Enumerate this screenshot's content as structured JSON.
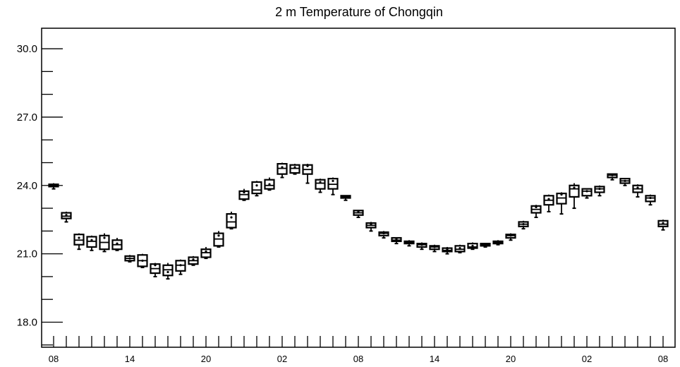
{
  "chart_data": {
    "type": "boxplot",
    "title": "2 m Temperature of Chongqin",
    "xlabel": "",
    "ylabel": "",
    "ylim": [
      16.9,
      30.9
    ],
    "yticks": [
      18.0,
      21.0,
      24.0,
      27.0,
      30.0
    ],
    "ytick_labels": [
      "18.0",
      "21.0",
      "24.0",
      "27.0",
      "30.0"
    ],
    "x_hours": [
      0,
      144
    ],
    "xticks": [
      0,
      18,
      36,
      54,
      72,
      90,
      108,
      126,
      144
    ],
    "xtick_labels": [
      "08",
      "14",
      "20",
      "02",
      "08",
      "14",
      "20",
      "02",
      "08"
    ],
    "grid": false,
    "boxes": [
      {
        "x": 0,
        "min": 23.85,
        "q1": 23.95,
        "median": 24.0,
        "q3": 24.05,
        "max": 24.1,
        "mean": 24.0
      },
      {
        "x": 3,
        "min": 22.4,
        "q1": 22.55,
        "median": 22.65,
        "q3": 22.8,
        "max": 22.85,
        "mean": 22.7
      },
      {
        "x": 6,
        "min": 21.2,
        "q1": 21.4,
        "median": 21.6,
        "q3": 21.85,
        "max": 21.9,
        "mean": 21.7
      },
      {
        "x": 9,
        "min": 21.15,
        "q1": 21.3,
        "median": 21.55,
        "q3": 21.75,
        "max": 21.8,
        "mean": 21.6
      },
      {
        "x": 12,
        "min": 21.1,
        "q1": 21.2,
        "median": 21.5,
        "q3": 21.8,
        "max": 21.9,
        "mean": 21.7
      },
      {
        "x": 15,
        "min": 21.15,
        "q1": 21.2,
        "median": 21.4,
        "q3": 21.6,
        "max": 21.7,
        "mean": 21.45
      },
      {
        "x": 18,
        "min": 20.65,
        "q1": 20.7,
        "median": 20.8,
        "q3": 20.9,
        "max": 20.95,
        "mean": 20.8
      },
      {
        "x": 21,
        "min": 20.4,
        "q1": 20.45,
        "median": 20.7,
        "q3": 20.95,
        "max": 21.0,
        "mean": 20.7
      },
      {
        "x": 24,
        "min": 20.0,
        "q1": 20.15,
        "median": 20.35,
        "q3": 20.55,
        "max": 20.6,
        "mean": 20.5
      },
      {
        "x": 27,
        "min": 19.9,
        "q1": 20.05,
        "median": 20.3,
        "q3": 20.5,
        "max": 20.6,
        "mean": 20.2
      },
      {
        "x": 30,
        "min": 20.1,
        "q1": 20.25,
        "median": 20.5,
        "q3": 20.7,
        "max": 20.75,
        "mean": 20.5
      },
      {
        "x": 33,
        "min": 20.5,
        "q1": 20.55,
        "median": 20.7,
        "q3": 20.85,
        "max": 20.9,
        "mean": 20.75
      },
      {
        "x": 36,
        "min": 20.8,
        "q1": 20.85,
        "median": 21.05,
        "q3": 21.2,
        "max": 21.3,
        "mean": 21.1
      },
      {
        "x": 39,
        "min": 21.3,
        "q1": 21.35,
        "median": 21.65,
        "q3": 21.9,
        "max": 22.0,
        "mean": 21.8
      },
      {
        "x": 42,
        "min": 22.1,
        "q1": 22.15,
        "median": 22.4,
        "q3": 22.75,
        "max": 22.85,
        "mean": 22.6
      },
      {
        "x": 45,
        "min": 23.35,
        "q1": 23.4,
        "median": 23.6,
        "q3": 23.75,
        "max": 23.85,
        "mean": 23.7
      },
      {
        "x": 48,
        "min": 23.55,
        "q1": 23.65,
        "median": 23.8,
        "q3": 24.15,
        "max": 24.2,
        "mean": 24.0
      },
      {
        "x": 51,
        "min": 23.8,
        "q1": 23.85,
        "median": 24.0,
        "q3": 24.25,
        "max": 24.35,
        "mean": 24.05
      },
      {
        "x": 54,
        "min": 24.35,
        "q1": 24.5,
        "median": 24.75,
        "q3": 24.95,
        "max": 25.0,
        "mean": 24.8
      },
      {
        "x": 57,
        "min": 24.5,
        "q1": 24.55,
        "median": 24.75,
        "q3": 24.9,
        "max": 24.95,
        "mean": 24.8
      },
      {
        "x": 60,
        "min": 24.1,
        "q1": 24.5,
        "median": 24.7,
        "q3": 24.9,
        "max": 24.95,
        "mean": 24.85
      },
      {
        "x": 63,
        "min": 23.7,
        "q1": 23.85,
        "median": 24.1,
        "q3": 24.25,
        "max": 24.3,
        "mean": 24.15
      },
      {
        "x": 66,
        "min": 23.6,
        "q1": 23.85,
        "median": 24.05,
        "q3": 24.3,
        "max": 24.35,
        "mean": 24.2
      },
      {
        "x": 69,
        "min": 23.35,
        "q1": 23.45,
        "median": 23.5,
        "q3": 23.55,
        "max": 23.55,
        "mean": 23.5
      },
      {
        "x": 72,
        "min": 22.6,
        "q1": 22.7,
        "median": 22.8,
        "q3": 22.9,
        "max": 22.9,
        "mean": 22.85
      },
      {
        "x": 75,
        "min": 22.0,
        "q1": 22.15,
        "median": 22.25,
        "q3": 22.35,
        "max": 22.4,
        "mean": 22.3
      },
      {
        "x": 78,
        "min": 21.7,
        "q1": 21.8,
        "median": 21.9,
        "q3": 21.95,
        "max": 22.0,
        "mean": 21.9
      },
      {
        "x": 81,
        "min": 21.45,
        "q1": 21.55,
        "median": 21.6,
        "q3": 21.7,
        "max": 21.7,
        "mean": 21.65
      },
      {
        "x": 84,
        "min": 21.35,
        "q1": 21.45,
        "median": 21.5,
        "q3": 21.55,
        "max": 21.6,
        "mean": 21.5
      },
      {
        "x": 87,
        "min": 21.2,
        "q1": 21.3,
        "median": 21.4,
        "q3": 21.45,
        "max": 21.5,
        "mean": 21.4
      },
      {
        "x": 90,
        "min": 21.1,
        "q1": 21.2,
        "median": 21.3,
        "q3": 21.35,
        "max": 21.4,
        "mean": 21.3
      },
      {
        "x": 93,
        "min": 21.0,
        "q1": 21.1,
        "median": 21.15,
        "q3": 21.25,
        "max": 21.3,
        "mean": 21.2
      },
      {
        "x": 96,
        "min": 21.05,
        "q1": 21.1,
        "median": 21.2,
        "q3": 21.35,
        "max": 21.4,
        "mean": 21.25
      },
      {
        "x": 99,
        "min": 21.2,
        "q1": 21.25,
        "median": 21.3,
        "q3": 21.45,
        "max": 21.5,
        "mean": 21.35
      },
      {
        "x": 102,
        "min": 21.3,
        "q1": 21.35,
        "median": 21.4,
        "q3": 21.45,
        "max": 21.45,
        "mean": 21.4
      },
      {
        "x": 105,
        "min": 21.4,
        "q1": 21.45,
        "median": 21.5,
        "q3": 21.55,
        "max": 21.6,
        "mean": 21.5
      },
      {
        "x": 108,
        "min": 21.6,
        "q1": 21.7,
        "median": 21.8,
        "q3": 21.85,
        "max": 21.9,
        "mean": 21.8
      },
      {
        "x": 111,
        "min": 22.1,
        "q1": 22.2,
        "median": 22.3,
        "q3": 22.4,
        "max": 22.45,
        "mean": 22.3
      },
      {
        "x": 114,
        "min": 22.6,
        "q1": 22.8,
        "median": 22.95,
        "q3": 23.1,
        "max": 23.15,
        "mean": 23.05
      },
      {
        "x": 117,
        "min": 22.85,
        "q1": 23.15,
        "median": 23.35,
        "q3": 23.55,
        "max": 23.6,
        "mean": 23.4
      },
      {
        "x": 120,
        "min": 22.75,
        "q1": 23.2,
        "median": 23.45,
        "q3": 23.65,
        "max": 23.7,
        "mean": 23.6
      },
      {
        "x": 123,
        "min": 23.0,
        "q1": 23.5,
        "median": 23.85,
        "q3": 24.0,
        "max": 24.1,
        "mean": 23.9
      },
      {
        "x": 126,
        "min": 23.45,
        "q1": 23.55,
        "median": 23.75,
        "q3": 23.85,
        "max": 23.85,
        "mean": 23.75
      },
      {
        "x": 129,
        "min": 23.55,
        "q1": 23.7,
        "median": 23.85,
        "q3": 23.95,
        "max": 24.0,
        "mean": 23.85
      },
      {
        "x": 132,
        "min": 24.25,
        "q1": 24.35,
        "median": 24.45,
        "q3": 24.5,
        "max": 24.5,
        "mean": 24.45
      },
      {
        "x": 135,
        "min": 24.0,
        "q1": 24.1,
        "median": 24.2,
        "q3": 24.3,
        "max": 24.3,
        "mean": 24.2
      },
      {
        "x": 138,
        "min": 23.5,
        "q1": 23.7,
        "median": 23.85,
        "q3": 24.0,
        "max": 24.05,
        "mean": 23.9
      },
      {
        "x": 141,
        "min": 23.15,
        "q1": 23.3,
        "median": 23.45,
        "q3": 23.55,
        "max": 23.6,
        "mean": 23.45
      },
      {
        "x": 144,
        "min": 22.05,
        "q1": 22.2,
        "median": 22.3,
        "q3": 22.45,
        "max": 22.5,
        "mean": 22.35
      }
    ]
  }
}
